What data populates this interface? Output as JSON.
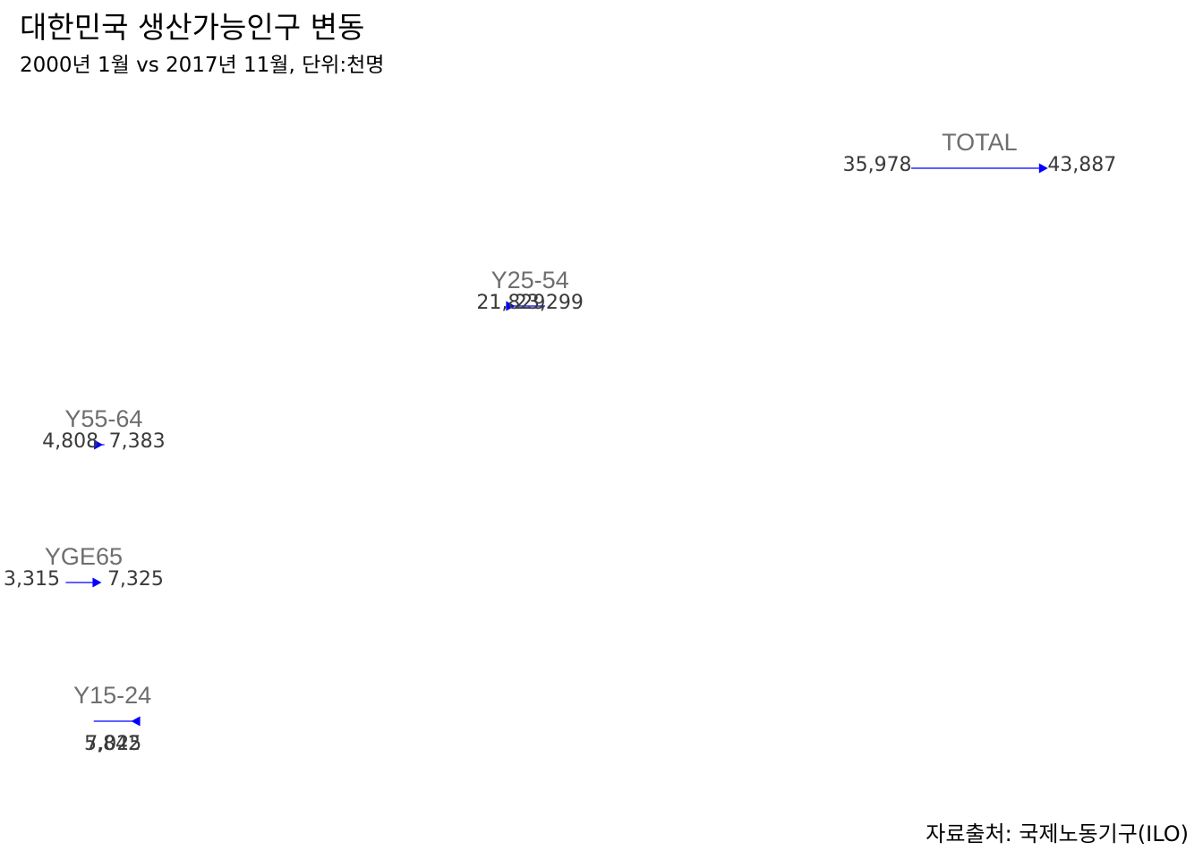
{
  "chart_data": {
    "type": "arrow",
    "title": "대한민국 생산가능인구 변동",
    "subtitle": "2000년 1월 vs 2017년 11월, 단위:천명",
    "caption": "자료출처: 국제노동기구(ILO)",
    "series_labels": {
      "from": "2000년 1월",
      "to": "2017년 11월"
    },
    "unit": "천명",
    "categories": [
      "TOTAL",
      "Y25-54",
      "Y55-64",
      "YGE65",
      "Y15-24"
    ],
    "from": [
      35978,
      21829,
      4808,
      3315,
      7025
    ],
    "to": [
      43887,
      23299,
      7383,
      7325,
      5842
    ],
    "from_labels": [
      "35,978",
      "21,829",
      "4,808",
      "3,315",
      "7,025"
    ],
    "to_labels": [
      "43,887",
      "23,299",
      "7,383",
      "7,325",
      "5,842"
    ],
    "arrow_color": "#0000ff",
    "label_color": "#6e6e6e"
  }
}
